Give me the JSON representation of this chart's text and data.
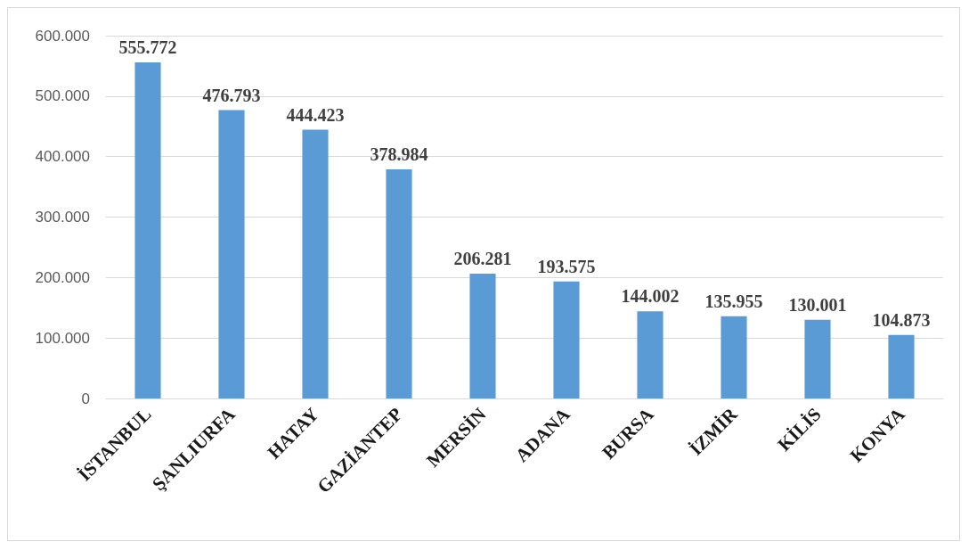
{
  "chart_data": {
    "type": "bar",
    "categories": [
      "İSTANBUL",
      "ŞANLIURFA",
      "HATAY",
      "GAZİANTEP",
      "MERSİN",
      "ADANA",
      "BURSA",
      "İZMİR",
      "KİLİS",
      "KONYA"
    ],
    "values": [
      555772,
      476793,
      444423,
      378984,
      206281,
      193575,
      144002,
      135955,
      130001,
      104873
    ],
    "value_labels": [
      "555.772",
      "476.793",
      "444.423",
      "378.984",
      "206.281",
      "193.575",
      "144.002",
      "135.955",
      "130.001",
      "104.873"
    ],
    "color": "#5b9bd5",
    "ylim": [
      0,
      600000
    ],
    "yticks": [
      {
        "value": 0,
        "label": "0"
      },
      {
        "value": 100000,
        "label": "100.000"
      },
      {
        "value": 200000,
        "label": "200.000"
      },
      {
        "value": 300000,
        "label": "300.000"
      },
      {
        "value": 400000,
        "label": "400.000"
      },
      {
        "value": 500000,
        "label": "500.000"
      },
      {
        "value": 600000,
        "label": "600.000"
      }
    ],
    "grid": "y"
  }
}
